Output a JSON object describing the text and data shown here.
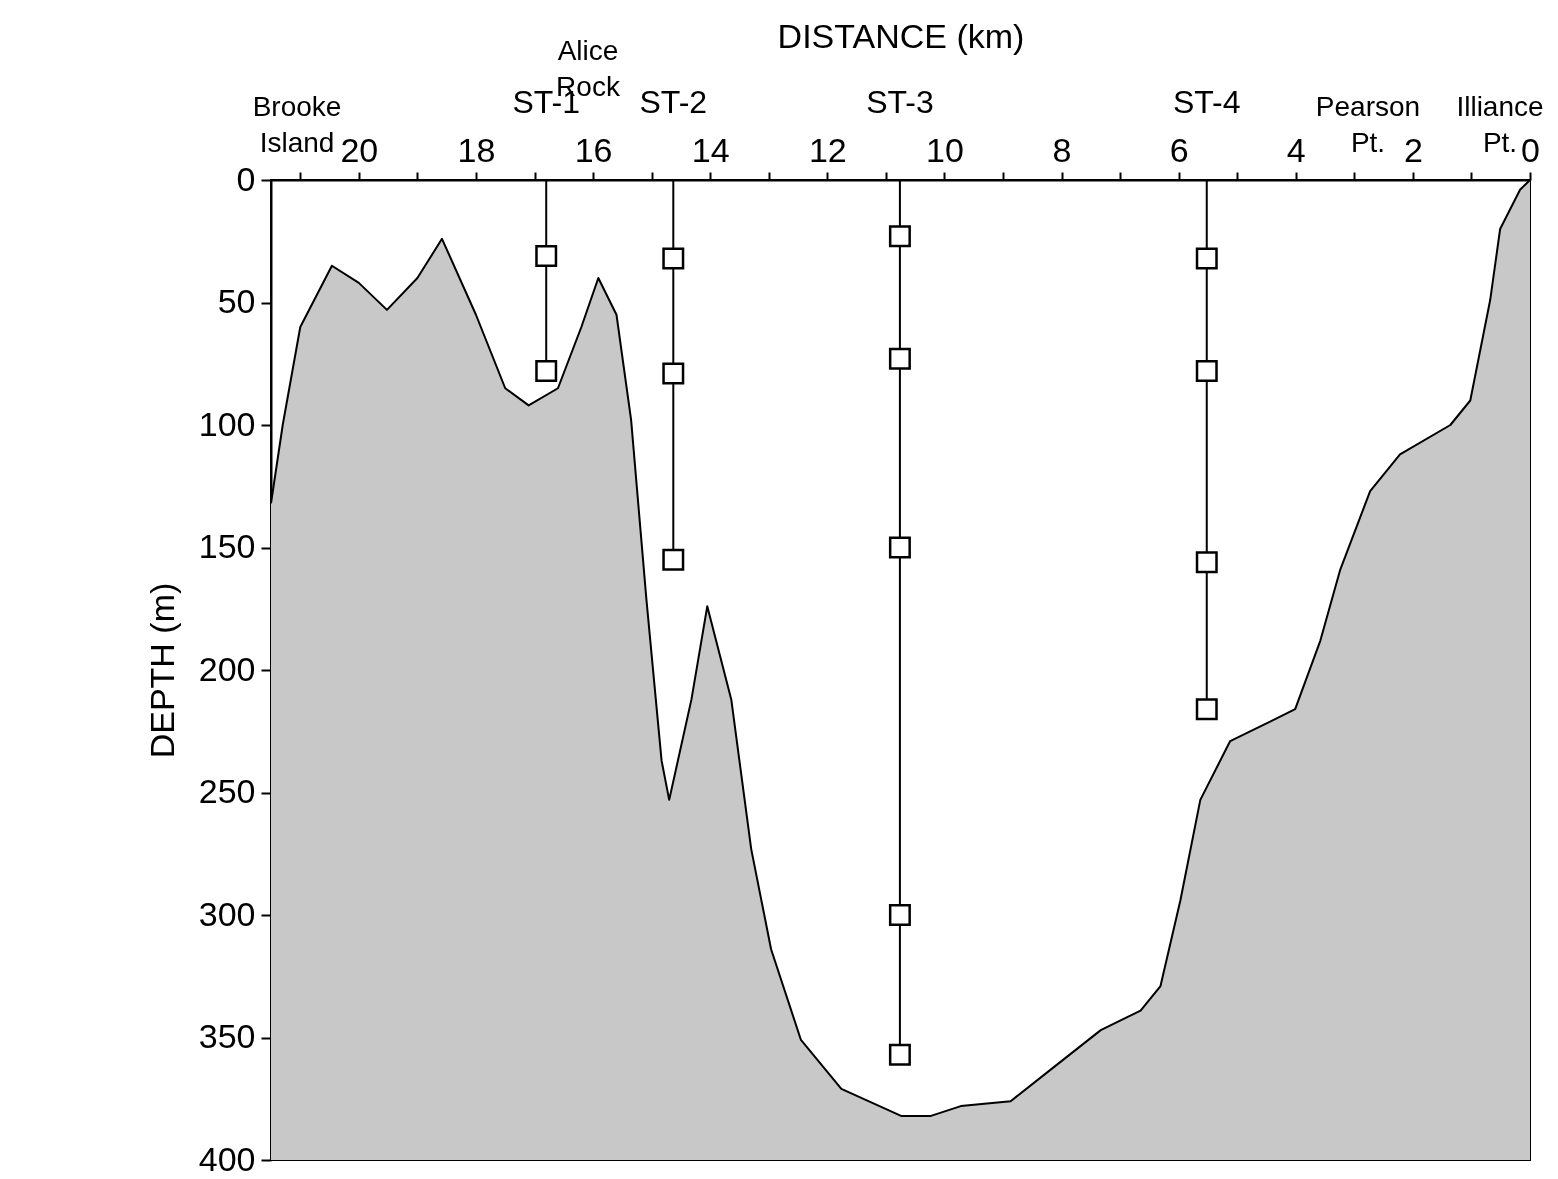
{
  "chart_data": {
    "type": "line",
    "xlabel": "DISTANCE (km)",
    "ylabel": "DEPTH (m)",
    "xlim": [
      21.5,
      0
    ],
    "xticks": [
      0,
      {
        "value": 1,
        "label": null
      },
      2,
      {
        "value": 3,
        "label": null
      },
      4,
      {
        "value": 5,
        "label": null
      },
      6,
      {
        "value": 7,
        "label": null
      },
      8,
      {
        "value": 9,
        "label": null
      },
      10,
      {
        "value": 11,
        "label": null
      },
      12,
      {
        "value": 13,
        "label": null
      },
      14,
      {
        "value": 15,
        "label": null
      },
      16,
      {
        "value": 17,
        "label": null
      },
      18,
      {
        "value": 19,
        "label": null
      },
      20,
      {
        "value": 21,
        "label": null
      }
    ],
    "ylim": [
      400,
      0
    ],
    "yticks": [
      0,
      50,
      100,
      150,
      200,
      250,
      300,
      350,
      400
    ],
    "grid": false,
    "series": [
      {
        "color": "#000000",
        "x": [
          21.5,
          21.3,
          21.0,
          20.46,
          20.0,
          19.52,
          19.0,
          18.58,
          18.0,
          17.5,
          17.1,
          16.6,
          16.2,
          15.91,
          15.6,
          15.35,
          15.09,
          14.83,
          14.7,
          14.32,
          14.05,
          13.64,
          13.3,
          12.96,
          12.45,
          11.76,
          10.74,
          10.23,
          9.72,
          8.87,
          8.18,
          7.33,
          6.65,
          6.31,
          5.97,
          5.63,
          5.12,
          4.43,
          4.01,
          3.58,
          3.24,
          2.73,
          2.22,
          1.36,
          1.02,
          0.68,
          0.51,
          0.17,
          0
        ],
        "values": [
          132,
          100,
          60,
          35,
          42,
          53,
          40,
          24,
          55,
          85,
          92,
          85,
          60,
          40,
          55,
          98,
          171,
          237,
          253,
          212,
          174,
          212,
          273,
          314,
          351,
          371,
          382,
          382,
          378,
          376,
          363,
          347,
          339,
          329,
          294,
          253,
          229,
          221,
          216,
          188,
          159,
          127,
          112,
          100,
          90,
          49,
          20,
          4,
          0
        ],
        "lower": [
          132,
          100,
          60,
          35,
          42,
          53,
          40,
          24,
          55,
          85,
          92,
          85,
          60,
          40,
          55,
          98,
          171,
          237,
          253,
          212,
          174,
          212,
          273,
          314,
          351,
          371,
          382,
          382,
          378,
          376,
          363,
          347,
          339,
          329,
          294,
          253,
          229,
          221,
          216,
          188,
          159,
          127,
          112,
          100,
          90,
          49,
          20,
          4,
          0
        ],
        "upper": [
          400,
          400,
          400,
          400,
          400,
          400,
          400,
          400,
          400,
          400,
          400,
          400,
          400,
          400,
          400,
          400,
          400,
          400,
          400,
          400,
          400,
          400,
          400,
          400,
          400,
          400,
          400,
          400,
          400,
          400,
          400,
          400,
          400,
          400,
          400,
          400,
          400,
          400,
          400,
          400,
          400,
          400,
          400,
          400,
          400,
          400,
          400,
          400,
          400
        ]
      },
      {
        "type": "scatter",
        "marker": "square",
        "color": "#000000",
        "x": [
          16.8,
          16.8,
          14.63,
          14.63,
          14.63,
          10.76,
          10.76,
          10.76,
          10.76,
          10.76,
          5.52,
          5.52,
          5.52,
          5.52
        ],
        "values": [
          31,
          78,
          32,
          79,
          155,
          23,
          73,
          150,
          300,
          357,
          32,
          78,
          156,
          216
        ]
      }
    ],
    "ref_lines": [
      {
        "axis": "x",
        "value": 16.8,
        "label": "ST-1"
      },
      {
        "axis": "x",
        "value": 14.63,
        "label": "ST-2"
      },
      {
        "axis": "x",
        "value": 10.76,
        "label": "ST-3"
      },
      {
        "axis": "x",
        "value": 5.52,
        "label": "ST-4"
      }
    ],
    "annotations": [
      "Brooke Island",
      "Alice Rock",
      "Pearson Pt.",
      "Illiance Pt."
    ]
  }
}
